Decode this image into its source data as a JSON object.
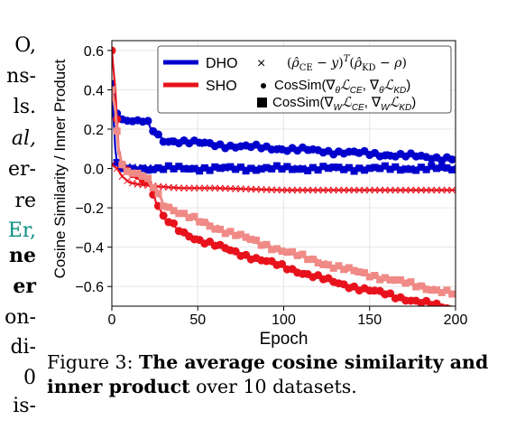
{
  "left_column_fragments": [
    {
      "text": "O,",
      "style": "normal"
    },
    {
      "text": "ns-",
      "style": "normal"
    },
    {
      "text": "ls.",
      "style": "normal"
    },
    {
      "text": "al,",
      "style": "ital"
    },
    {
      "text": "er-",
      "style": "normal"
    },
    {
      "text": "re",
      "style": "normal"
    },
    {
      "text": "Er,",
      "style": "teal"
    },
    {
      "text": "ne",
      "style": "bold"
    },
    {
      "text": "er",
      "style": "bold"
    },
    {
      "text": "on-",
      "style": "normal"
    },
    {
      "text": "di-",
      "style": "normal"
    },
    {
      "text": "0",
      "style": "normal"
    },
    {
      "text": "is-",
      "style": "normal"
    }
  ],
  "caption": {
    "prefix": "Figure 3: ",
    "bold": "The average cosine similarity and inner product",
    "suffix": " over 10 datasets."
  },
  "colors": {
    "dho": "#0000cc",
    "sho_dark": "#e8121c",
    "sho_light": "#f08a86"
  },
  "chart_data": {
    "type": "line",
    "xlabel": "Epoch",
    "ylabel": "Cosine Similarity / Inner Product",
    "xlim": [
      0,
      200
    ],
    "ylim": [
      -0.7,
      0.65
    ],
    "xticks": [
      0,
      50,
      100,
      150,
      200
    ],
    "xtick_labels": [
      "0",
      "50",
      "100",
      "150",
      "200"
    ],
    "yticks": [
      0.6,
      0.4,
      0.2,
      0.0,
      -0.2,
      -0.4,
      -0.6
    ],
    "ytick_labels": [
      "0.6",
      "0.4",
      "0.2",
      "0.0",
      "−0.2",
      "−0.4",
      "−0.6"
    ],
    "grid": true,
    "legend": {
      "placement": "top-right",
      "lines": [
        {
          "label": "DHO",
          "color": "#0000cc"
        },
        {
          "label": "SHO",
          "color": "#f08a86",
          "overlay": "#e8121c"
        }
      ],
      "markers": [
        {
          "symbol": "x",
          "label": "(ρ̂_CE − y)^T(ρ̂_KD − ρ)"
        },
        {
          "symbol": "circle",
          "label": "CosSim(∇_θ L_CE, ∇_θ L_KD)"
        },
        {
          "symbol": "square",
          "label": "CosSim(∇_W L_CE, ∇_W L_KD)"
        }
      ]
    },
    "series": [
      {
        "model": "DHO",
        "metric": "inner product",
        "marker": "x",
        "color": "#0000cc",
        "x": [
          0,
          2,
          4,
          8,
          15,
          30,
          60,
          100,
          150,
          200
        ],
        "y": [
          0.02,
          0.03,
          0.02,
          0.01,
          0.005,
          0.003,
          0.002,
          0.002,
          0.001,
          0.001
        ]
      },
      {
        "model": "DHO",
        "metric": "cossim theta",
        "marker": "circle",
        "color": "#0000cc",
        "x": [
          0,
          2,
          4,
          6,
          10,
          20,
          25,
          30,
          40,
          60,
          80,
          100,
          120,
          140,
          160,
          180,
          200
        ],
        "y": [
          0.43,
          0.32,
          0.24,
          0.25,
          0.24,
          0.24,
          0.18,
          0.14,
          0.14,
          0.12,
          0.11,
          0.1,
          0.09,
          0.08,
          0.07,
          0.06,
          0.05
        ]
      },
      {
        "model": "DHO",
        "metric": "cossim W",
        "marker": "square",
        "color": "#0000cc",
        "x": [
          0,
          1,
          2,
          3,
          4,
          8,
          20,
          60,
          100,
          150,
          200
        ],
        "y": [
          0.4,
          0.25,
          0.1,
          0.03,
          0.0,
          0.0,
          0.0,
          0.0,
          0.0,
          0.0,
          0.0
        ]
      },
      {
        "model": "SHO",
        "metric": "inner product",
        "marker": "x",
        "color": "#e8121c",
        "x": [
          0,
          3,
          6,
          10,
          15,
          25,
          40,
          60,
          100,
          150,
          200
        ],
        "y": [
          0.02,
          0.0,
          -0.04,
          -0.07,
          -0.08,
          -0.09,
          -0.1,
          -0.1,
          -0.11,
          -0.11,
          -0.11
        ]
      },
      {
        "model": "SHO",
        "metric": "cossim theta",
        "marker": "circle",
        "color": "#e8121c",
        "x": [
          0,
          2,
          4,
          6,
          8,
          10,
          15,
          20,
          25,
          30,
          40,
          50,
          70,
          100,
          130,
          160,
          200
        ],
        "y": [
          0.6,
          0.4,
          0.1,
          0.02,
          0.0,
          -0.02,
          -0.04,
          -0.05,
          -0.15,
          -0.25,
          -0.32,
          -0.36,
          -0.42,
          -0.5,
          -0.58,
          -0.64,
          -0.72
        ]
      },
      {
        "model": "SHO",
        "metric": "cossim W",
        "marker": "square",
        "color": "#f08a86",
        "x": [
          0,
          2,
          4,
          6,
          8,
          10,
          15,
          20,
          25,
          30,
          40,
          60,
          80,
          100,
          130,
          160,
          200
        ],
        "y": [
          0.4,
          0.3,
          0.08,
          0.02,
          -0.01,
          -0.02,
          -0.03,
          -0.05,
          -0.1,
          -0.18,
          -0.23,
          -0.3,
          -0.36,
          -0.42,
          -0.5,
          -0.56,
          -0.64
        ]
      }
    ]
  }
}
